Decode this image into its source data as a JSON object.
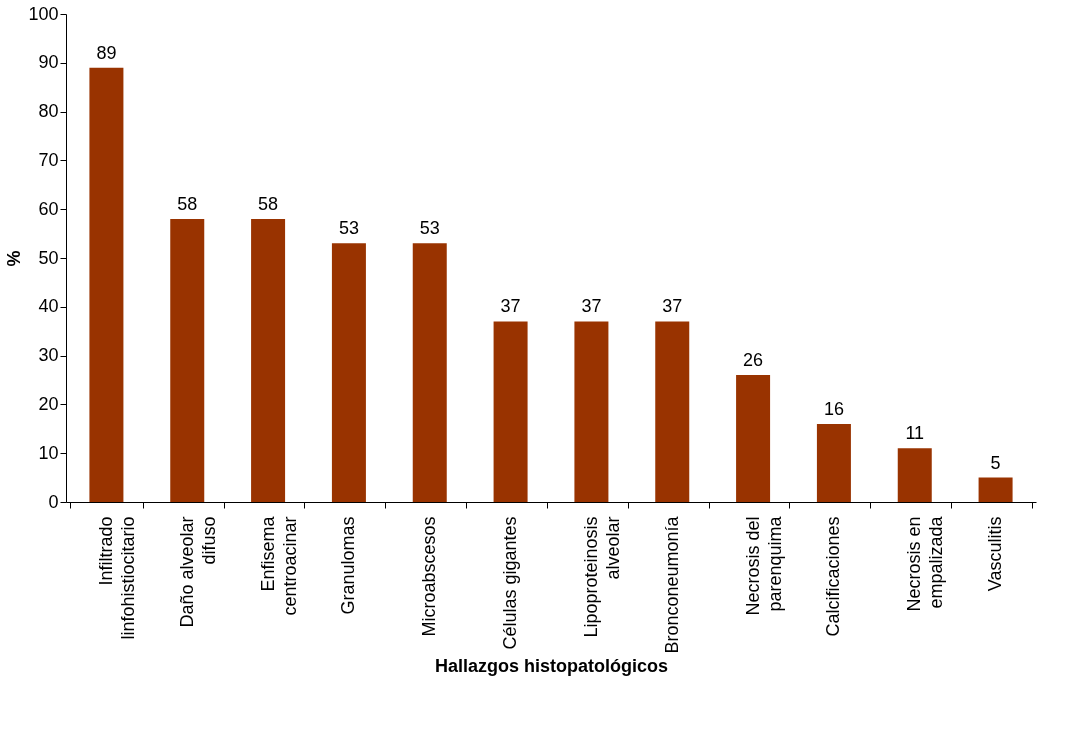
{
  "chart_data": {
    "type": "bar",
    "xlabel": "Hallazgos histopatológicos",
    "ylabel": "%",
    "categories": [
      "Infiltrado\nlinfohistiocitario",
      "Daño alveolar\ndifuso",
      "Enfisema\ncentroacinar",
      "Granulomas",
      "Microabscesos",
      "Células gigantes",
      "Lipoproteinosis\nalveolar",
      "Bronconeumonía",
      "Necrosis del\nparenquima",
      "Calcificaciones",
      "Necrosis en\nempalizada",
      "Vasculitis"
    ],
    "values": [
      89,
      58,
      58,
      53,
      53,
      37,
      37,
      37,
      26,
      16,
      11,
      5
    ],
    "color": "#993300",
    "ylim": [
      0,
      100
    ],
    "yticks": [
      0,
      10,
      20,
      30,
      40,
      50,
      60,
      70,
      80,
      90,
      100
    ],
    "data_labels": true,
    "grid": false
  }
}
